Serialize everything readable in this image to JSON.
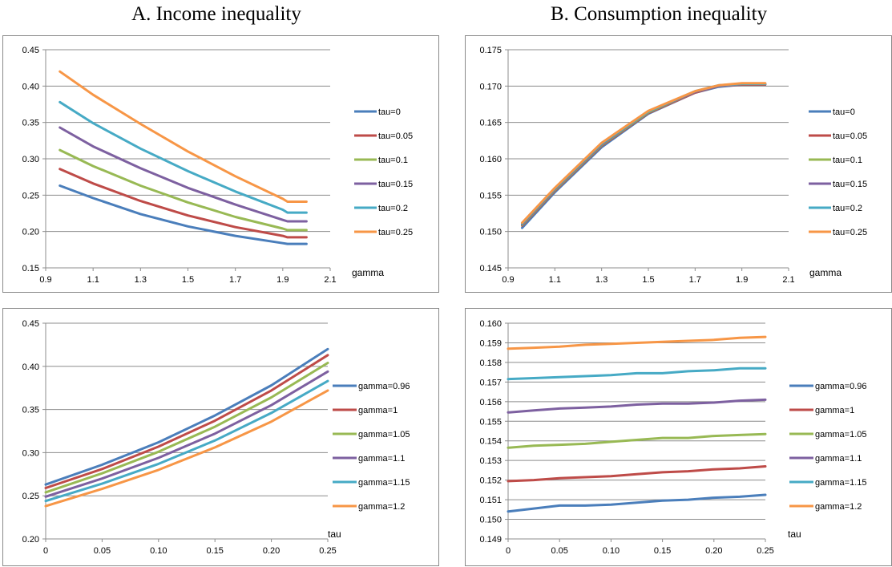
{
  "titles": {
    "a": "A. Income inequality",
    "b": "B. Consumption inequality"
  },
  "chart_data": [
    {
      "id": "a1",
      "type": "line",
      "xlabel": "gamma",
      "ylabel": "",
      "xlim": [
        0.9,
        2.1
      ],
      "ylim": [
        0.15,
        0.45
      ],
      "xticks": [
        0.9,
        1.1,
        1.3,
        1.5,
        1.7,
        1.9,
        2.1
      ],
      "yticks": [
        0.15,
        0.2,
        0.25,
        0.3,
        0.35,
        0.4,
        0.45
      ],
      "tick_decimals": {
        "x": 1,
        "y": 2
      },
      "grid": "horizontal",
      "legend_position": "right",
      "x": [
        0.96,
        1.1,
        1.3,
        1.5,
        1.7,
        1.9,
        1.92,
        2.0
      ],
      "series": [
        {
          "name": "tau=0",
          "color": "#4a7ebb",
          "values": [
            0.263,
            0.246,
            0.224,
            0.207,
            0.194,
            0.184,
            0.183,
            0.183
          ]
        },
        {
          "name": "tau=0.05",
          "color": "#be4b48",
          "values": [
            0.286,
            0.266,
            0.242,
            0.222,
            0.206,
            0.194,
            0.192,
            0.192
          ]
        },
        {
          "name": "tau=0.1",
          "color": "#98b954",
          "values": [
            0.312,
            0.29,
            0.263,
            0.24,
            0.22,
            0.204,
            0.202,
            0.202
          ]
        },
        {
          "name": "tau=0.15",
          "color": "#7d60a0",
          "values": [
            0.343,
            0.317,
            0.287,
            0.26,
            0.237,
            0.216,
            0.214,
            0.214
          ]
        },
        {
          "name": "tau=0.2",
          "color": "#46aac5",
          "values": [
            0.378,
            0.349,
            0.314,
            0.283,
            0.255,
            0.23,
            0.226,
            0.226
          ]
        },
        {
          "name": "tau=0.25",
          "color": "#f79646",
          "values": [
            0.42,
            0.388,
            0.348,
            0.31,
            0.276,
            0.245,
            0.241,
            0.241
          ]
        }
      ]
    },
    {
      "id": "b1",
      "type": "line",
      "xlabel": "gamma",
      "ylabel": "",
      "xlim": [
        0.9,
        2.1
      ],
      "ylim": [
        0.145,
        0.175
      ],
      "xticks": [
        0.9,
        1.1,
        1.3,
        1.5,
        1.7,
        1.9,
        2.1
      ],
      "yticks": [
        0.145,
        0.15,
        0.155,
        0.16,
        0.165,
        0.17,
        0.175
      ],
      "tick_decimals": {
        "x": 1,
        "y": 3
      },
      "grid": "horizontal",
      "legend_position": "right",
      "x": [
        0.96,
        1.1,
        1.3,
        1.5,
        1.7,
        1.8,
        1.9,
        2.0
      ],
      "series": [
        {
          "name": "tau=0",
          "color": "#4a7ebb",
          "values": [
            0.1505,
            0.1554,
            0.1616,
            0.1662,
            0.1691,
            0.1699,
            0.1702,
            0.1702
          ]
        },
        {
          "name": "tau=0.05",
          "color": "#be4b48",
          "values": [
            0.1508,
            0.1556,
            0.1618,
            0.1663,
            0.1691,
            0.17,
            0.1702,
            0.1702
          ]
        },
        {
          "name": "tau=0.1",
          "color": "#98b954",
          "values": [
            0.1509,
            0.1557,
            0.1619,
            0.1664,
            0.1692,
            0.17,
            0.1703,
            0.1703
          ]
        },
        {
          "name": "tau=0.15",
          "color": "#7d60a0",
          "values": [
            0.151,
            0.1558,
            0.162,
            0.1665,
            0.1692,
            0.17,
            0.1703,
            0.1703
          ]
        },
        {
          "name": "tau=0.2",
          "color": "#46aac5",
          "values": [
            0.1511,
            0.1559,
            0.1621,
            0.1665,
            0.1693,
            0.1701,
            0.1703,
            0.1703
          ]
        },
        {
          "name": "tau=0.25",
          "color": "#f79646",
          "values": [
            0.1512,
            0.156,
            0.1622,
            0.1666,
            0.1693,
            0.1701,
            0.1704,
            0.1704
          ]
        }
      ]
    },
    {
      "id": "a2",
      "type": "line",
      "xlabel": "tau",
      "ylabel": "",
      "xlim": [
        0,
        0.25
      ],
      "ylim": [
        0.2,
        0.45
      ],
      "xticks": [
        0,
        0.05,
        0.1,
        0.15,
        0.2,
        0.25
      ],
      "yticks": [
        0.2,
        0.25,
        0.3,
        0.35,
        0.4,
        0.45
      ],
      "tick_decimals": {
        "x": 2,
        "y": 2
      },
      "grid": "horizontal",
      "legend_position": "right",
      "x": [
        0,
        0.05,
        0.1,
        0.15,
        0.2,
        0.25
      ],
      "series": [
        {
          "name": "gamma=0.96",
          "color": "#4a7ebb",
          "values": [
            0.263,
            0.286,
            0.312,
            0.343,
            0.378,
            0.42
          ]
        },
        {
          "name": "gamma=1",
          "color": "#be4b48",
          "values": [
            0.259,
            0.281,
            0.307,
            0.337,
            0.372,
            0.413
          ]
        },
        {
          "name": "gamma=1.05",
          "color": "#98b954",
          "values": [
            0.254,
            0.276,
            0.301,
            0.33,
            0.364,
            0.404
          ]
        },
        {
          "name": "gamma=1.1",
          "color": "#7d60a0",
          "values": [
            0.249,
            0.27,
            0.294,
            0.322,
            0.355,
            0.394
          ]
        },
        {
          "name": "gamma=1.15",
          "color": "#46aac5",
          "values": [
            0.244,
            0.264,
            0.287,
            0.314,
            0.346,
            0.383
          ]
        },
        {
          "name": "gamma=1.2",
          "color": "#f79646",
          "values": [
            0.238,
            0.258,
            0.28,
            0.306,
            0.336,
            0.372
          ]
        }
      ]
    },
    {
      "id": "b2",
      "type": "line",
      "xlabel": "tau",
      "ylabel": "",
      "xlim": [
        0,
        0.25
      ],
      "ylim": [
        0.149,
        0.16
      ],
      "xticks": [
        0,
        0.05,
        0.1,
        0.15,
        0.2,
        0.25
      ],
      "yticks": [
        0.149,
        0.15,
        0.151,
        0.152,
        0.153,
        0.154,
        0.155,
        0.156,
        0.157,
        0.158,
        0.159,
        0.16
      ],
      "tick_decimals": {
        "x": 2,
        "y": 3
      },
      "grid": "horizontal",
      "legend_position": "right",
      "x": [
        0,
        0.025,
        0.05,
        0.075,
        0.1,
        0.125,
        0.15,
        0.175,
        0.2,
        0.225,
        0.25
      ],
      "series": [
        {
          "name": "gamma=0.96",
          "color": "#4a7ebb",
          "values": [
            0.1504,
            0.15055,
            0.1507,
            0.1507,
            0.15075,
            0.15085,
            0.15095,
            0.151,
            0.1511,
            0.15115,
            0.15125
          ]
        },
        {
          "name": "gamma=1",
          "color": "#be4b48",
          "values": [
            0.15195,
            0.152,
            0.1521,
            0.15215,
            0.1522,
            0.1523,
            0.1524,
            0.15245,
            0.15255,
            0.1526,
            0.1527
          ]
        },
        {
          "name": "gamma=1.05",
          "color": "#98b954",
          "values": [
            0.15365,
            0.15375,
            0.1538,
            0.15385,
            0.15395,
            0.15405,
            0.15415,
            0.15415,
            0.15425,
            0.1543,
            0.15435
          ]
        },
        {
          "name": "gamma=1.1",
          "color": "#7d60a0",
          "values": [
            0.15545,
            0.15555,
            0.15565,
            0.1557,
            0.15575,
            0.15585,
            0.1559,
            0.1559,
            0.15595,
            0.15605,
            0.1561
          ]
        },
        {
          "name": "gamma=1.15",
          "color": "#46aac5",
          "values": [
            0.15715,
            0.1572,
            0.15725,
            0.1573,
            0.15735,
            0.15745,
            0.15745,
            0.15755,
            0.1576,
            0.1577,
            0.1577
          ]
        },
        {
          "name": "gamma=1.2",
          "color": "#f79646",
          "values": [
            0.1587,
            0.15875,
            0.1588,
            0.1589,
            0.15895,
            0.159,
            0.15905,
            0.1591,
            0.15915,
            0.15925,
            0.1593
          ]
        }
      ]
    }
  ]
}
